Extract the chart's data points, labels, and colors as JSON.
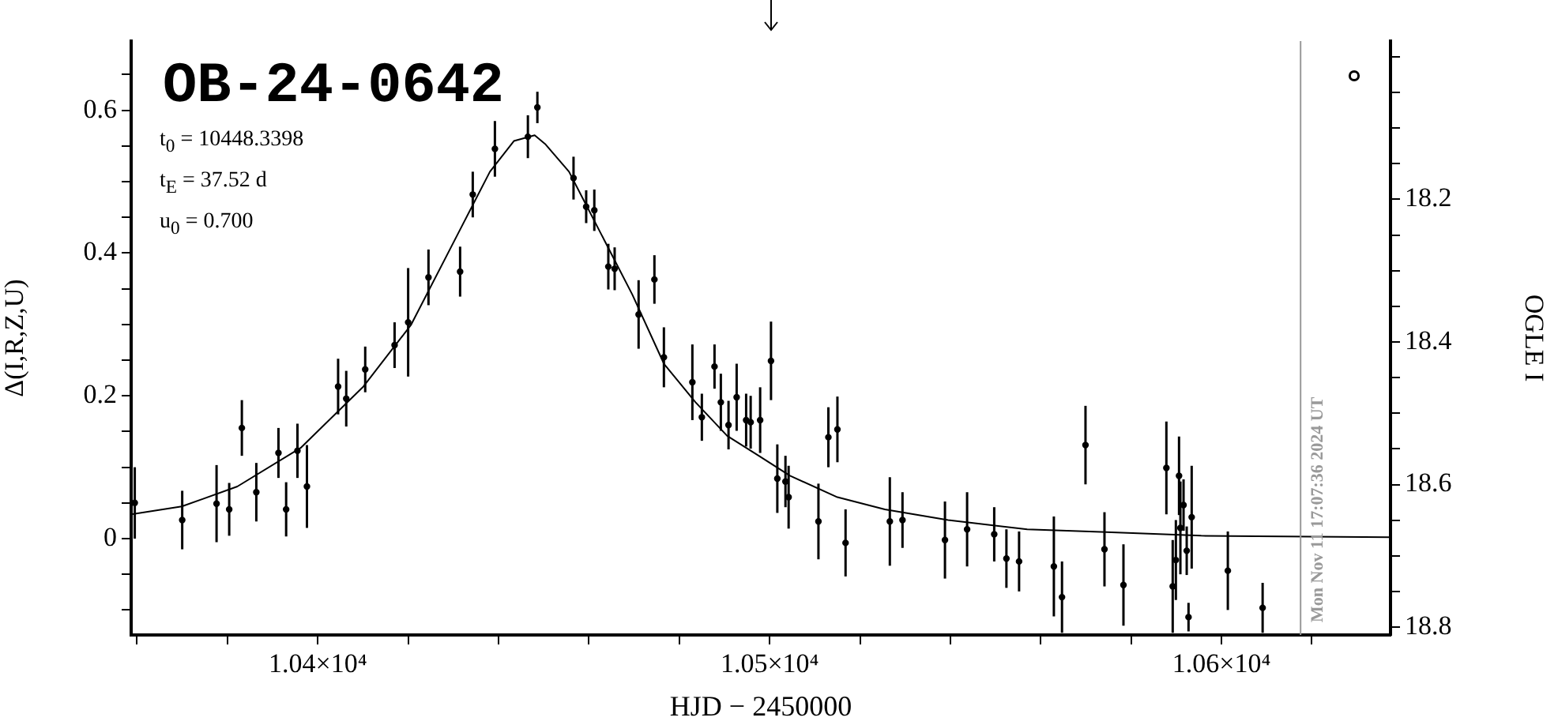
{
  "chart_data": {
    "type": "scatter",
    "title": "OB-24-0642",
    "xlabel": "HJD − 2450000",
    "ylabel": "Δ(I,R,Z,U)",
    "y2label": "OGLE I",
    "annotations": [
      "t$_{0}$ = 10448.3398",
      "t$_{E}$ = 37.52 d",
      "u$_{0}$ = 0.700",
      "Mon Nov 11 17:07:36 2024 UT"
    ],
    "xlim": [
      10358.7,
      10637.4
    ],
    "xticks": [
      {
        "value": 10360,
        "label": null
      },
      {
        "value": 10380,
        "label": null
      },
      {
        "value": 10400,
        "label": "1.04×10⁴"
      },
      {
        "value": 10420,
        "label": null
      },
      {
        "value": 10440,
        "label": null
      },
      {
        "value": 10460,
        "label": null
      },
      {
        "value": 10480,
        "label": null
      },
      {
        "value": 10500,
        "label": "1.05×10⁴"
      },
      {
        "value": 10520,
        "label": null
      },
      {
        "value": 10540,
        "label": null
      },
      {
        "value": 10560,
        "label": null
      },
      {
        "value": 10580,
        "label": null
      },
      {
        "value": 10600,
        "label": "1.06×10⁴"
      },
      {
        "value": 10620,
        "label": null
      }
    ],
    "ylim": [
      -0.135,
      0.697
    ],
    "yticks": [
      {
        "value": -0.1,
        "label": null
      },
      {
        "value": -0.05,
        "label": null
      },
      0,
      {
        "value": 0.05,
        "label": null
      },
      {
        "value": 0.1,
        "label": null
      },
      {
        "value": 0.15,
        "label": null
      },
      0.2,
      {
        "value": 0.25,
        "label": null
      },
      {
        "value": 0.3,
        "label": null
      },
      {
        "value": 0.35,
        "label": null
      },
      0.4,
      {
        "value": 0.45,
        "label": null
      },
      {
        "value": 0.5,
        "label": null
      },
      {
        "value": 0.55,
        "label": null
      },
      0.6,
      {
        "value": 0.65,
        "label": null
      }
    ],
    "y2lim": [
      18.811,
      17.978
    ],
    "y2ticks": [
      {
        "value": 18.0,
        "label": null
      },
      {
        "value": 18.05,
        "label": null
      },
      {
        "value": 18.1,
        "label": null
      },
      {
        "value": 18.15,
        "label": null
      },
      18.2,
      {
        "value": 18.25,
        "label": null
      },
      {
        "value": 18.3,
        "label": null
      },
      {
        "value": 18.35,
        "label": null
      },
      18.4,
      {
        "value": 18.45,
        "label": null
      },
      {
        "value": 18.5,
        "label": null
      },
      {
        "value": 18.55,
        "label": null
      },
      18.6,
      {
        "value": 18.65,
        "label": null
      },
      {
        "value": 18.7,
        "label": null
      },
      {
        "value": 18.75,
        "label": null
      },
      18.8
    ],
    "grid": false,
    "legend": false,
    "ref_lines": [
      {
        "axis": "x",
        "value": 10617.5,
        "color": "#999999"
      }
    ],
    "series": [
      {
        "color": "#000000",
        "marker": "circle",
        "x": [
          10359.5,
          10370,
          10377.6,
          10380.4,
          10383.2,
          10386.4,
          10391.3,
          10393,
          10395.5,
          10397.6,
          10404.5,
          10406.3,
          10410.5,
          10417,
          10420,
          10424.5,
          10431.5,
          10434.3,
          10439.2,
          10446.5,
          10448.6,
          10456.6,
          10459.4,
          10461.2,
          10464.3,
          10465.7,
          10471,
          10474.5,
          10476.6,
          10482.9,
          10485,
          10487.8,
          10489.2,
          10490.9,
          10492.7,
          10494.8,
          10495.8,
          10497.9,
          10500.3,
          10501.7,
          10503.5,
          10504.2,
          10510.8,
          10513,
          10515,
          10516.8,
          10526.6,
          10529.4,
          10538.8,
          10543.7,
          10549.7,
          10552.4,
          10555.2,
          10562.9,
          10564.7,
          10569.9,
          10574.1,
          10578.3,
          10587.8,
          10589.2,
          10589.9,
          10590.6,
          10590.9,
          10591.6,
          10592.3,
          10592.7,
          10593.4,
          10601.4,
          10609.1
        ],
        "values": [
          0.05,
          0.026,
          0.049,
          0.041,
          0.155,
          0.065,
          0.12,
          0.041,
          0.123,
          0.073,
          0.213,
          0.196,
          0.237,
          0.271,
          0.303,
          0.366,
          0.374,
          0.482,
          0.546,
          0.563,
          0.604,
          0.505,
          0.465,
          0.46,
          0.381,
          0.378,
          0.314,
          0.363,
          0.254,
          0.219,
          0.17,
          0.241,
          0.191,
          0.159,
          0.198,
          0.166,
          0.163,
          0.166,
          0.249,
          0.084,
          0.08,
          0.058,
          0.024,
          0.142,
          0.153,
          -0.006,
          0.024,
          0.026,
          -0.002,
          0.013,
          0.006,
          -0.028,
          -0.032,
          -0.039,
          -0.082,
          0.131,
          -0.015,
          -0.065,
          0.099,
          -0.067,
          -0.03,
          0.088,
          0.015,
          0.047,
          -0.017,
          -0.11,
          0.03,
          -0.045,
          -0.097
        ],
        "errors": [
          0.05,
          0.041,
          0.054,
          0.037,
          0.039,
          0.041,
          0.035,
          0.038,
          0.038,
          0.058,
          0.039,
          0.039,
          0.032,
          0.032,
          0.076,
          0.039,
          0.035,
          0.032,
          0.039,
          0.03,
          0.022,
          0.03,
          0.023,
          0.029,
          0.032,
          0.03,
          0.048,
          0.034,
          0.042,
          0.053,
          0.033,
          0.031,
          0.04,
          0.034,
          0.047,
          0.037,
          0.037,
          0.046,
          0.055,
          0.048,
          0.036,
          0.044,
          0.053,
          0.042,
          0.046,
          0.047,
          0.062,
          0.039,
          0.054,
          0.052,
          0.038,
          0.041,
          0.042,
          0.07,
          0.05,
          0.055,
          0.052,
          0.057,
          0.065,
          0.065,
          0.056,
          0.055,
          0.065,
          0.036,
          0.034,
          0.02,
          0.072,
          0.055,
          0.035
        ]
      },
      {
        "type": "line",
        "color": "#000000",
        "marker": "none",
        "line_style": "solid",
        "x": [
          10358.7,
          10369.9,
          10382.2,
          10396.2,
          10410.1,
          10420.6,
          10431.1,
          10438.1,
          10443.4,
          10448,
          10450.3,
          10455.6,
          10462.6,
          10469.6,
          10476.6,
          10483.6,
          10490.6,
          10497.6,
          10504.5,
          10515,
          10525.5,
          10539.5,
          10557,
          10574.5,
          10595.5,
          10637.4
        ],
        "values": [
          0.034,
          0.045,
          0.073,
          0.127,
          0.213,
          0.299,
          0.428,
          0.514,
          0.557,
          0.565,
          0.553,
          0.514,
          0.428,
          0.342,
          0.245,
          0.191,
          0.144,
          0.116,
          0.088,
          0.058,
          0.041,
          0.026,
          0.013,
          0.009,
          0.004,
          0.002
        ]
      }
    ]
  }
}
